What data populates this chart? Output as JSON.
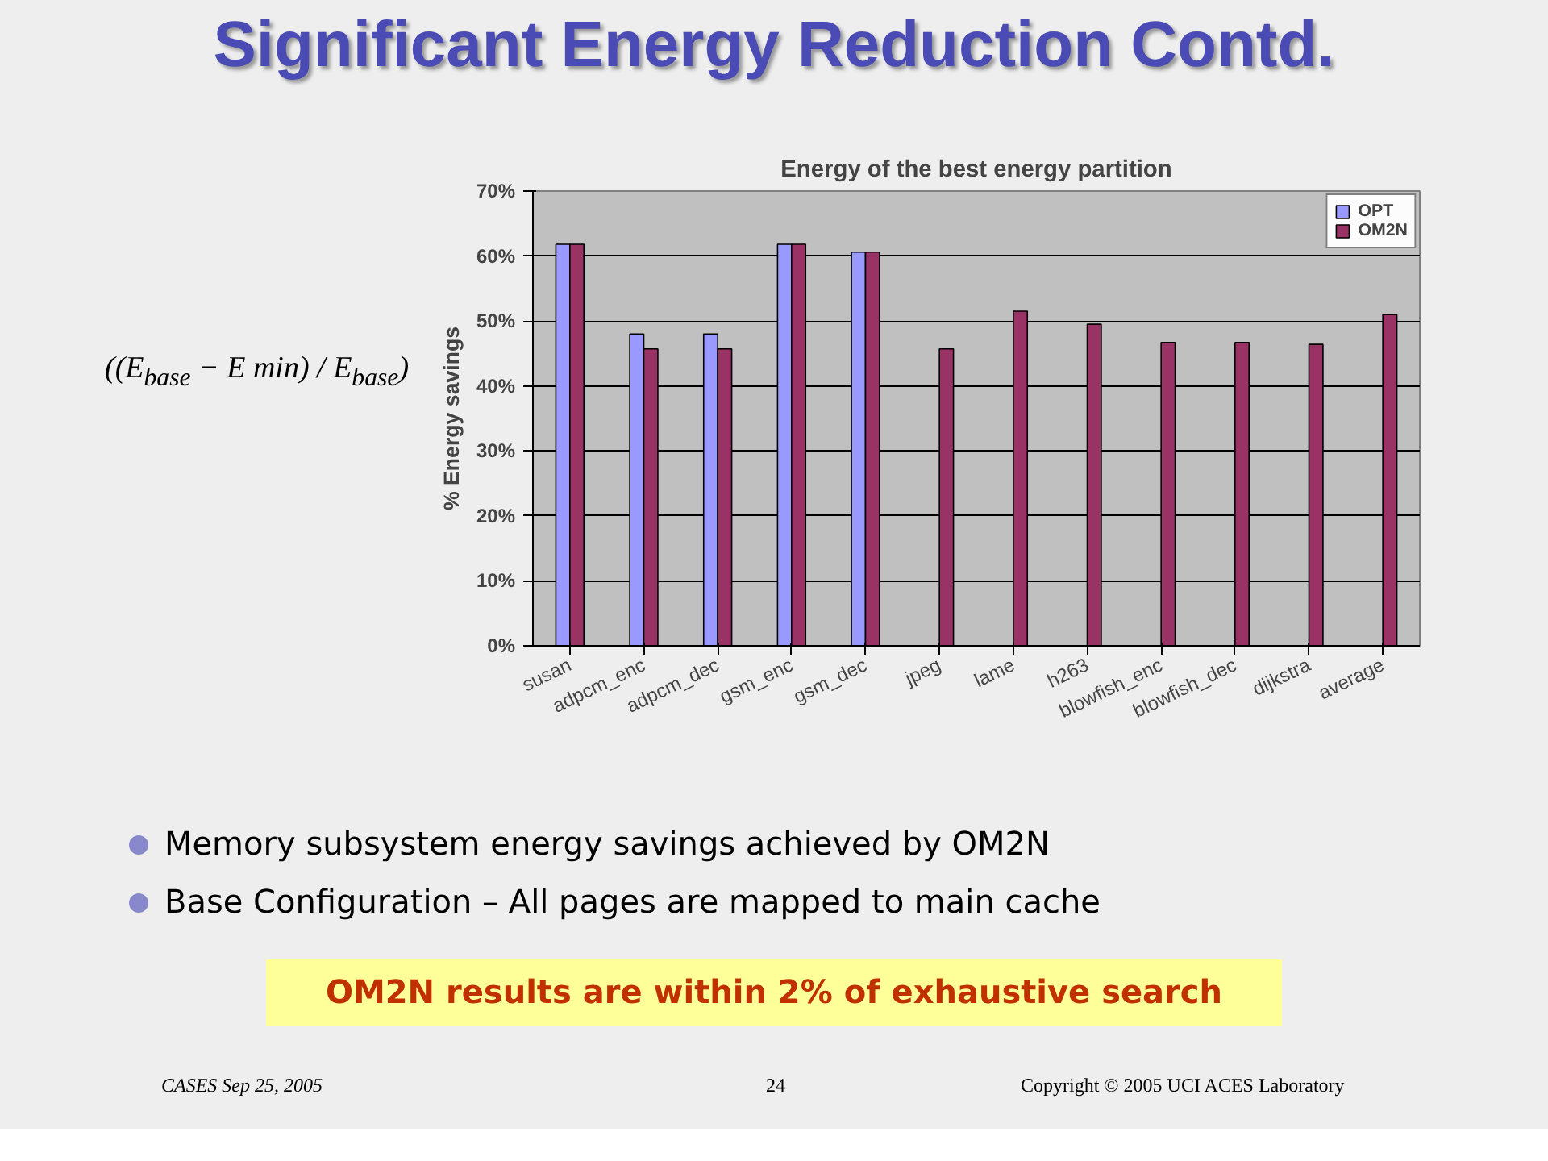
{
  "chart_data": {
    "type": "bar",
    "title": "Significant Energy Reduction Contd.",
    "subtitle": "Energy of the best energy partition",
    "ylabel": "% Energy savings",
    "categories": [
      "susan",
      "adpcm_enc",
      "adpcm_dec",
      "gsm_enc",
      "gsm_dec",
      "jpeg",
      "lame",
      "h263",
      "blowfish_enc",
      "blowfish_dec",
      "dijkstra",
      "average"
    ],
    "series": [
      {
        "name": "OPT",
        "color": "#9999ff",
        "values": [
          61.8,
          48.0,
          48.0,
          61.8,
          60.6,
          null,
          null,
          null,
          null,
          null,
          null,
          null
        ]
      },
      {
        "name": "OM2N",
        "color": "#993366",
        "values": [
          61.8,
          45.7,
          45.7,
          61.8,
          60.6,
          45.7,
          51.5,
          49.5,
          46.7,
          46.7,
          46.4,
          51.0
        ]
      }
    ],
    "ylim": [
      0,
      70
    ],
    "yticks": [
      {
        "value": 0,
        "label": "0%"
      },
      {
        "value": 10,
        "label": "10%"
      },
      {
        "value": 20,
        "label": "20%"
      },
      {
        "value": 30,
        "label": "30%"
      },
      {
        "value": 40,
        "label": "40%"
      },
      {
        "value": 50,
        "label": "50%"
      },
      {
        "value": 60,
        "label": "60%"
      },
      {
        "value": 70,
        "label": "70%"
      }
    ],
    "grid": "y",
    "legend": "top right",
    "annotations": [
      "((E$_{base}$ − E min) / E$_{base}$)",
      "Memory subsystem energy savings achieved by OM2N",
      "Base Configuration – All pages are mapped to main cache",
      "OM2N results are within 2% of exhaustive search",
      "CASES  Sep 25, 2005",
      "24",
      "Copyright © 2005  UCI ACES Laboratory"
    ]
  }
}
